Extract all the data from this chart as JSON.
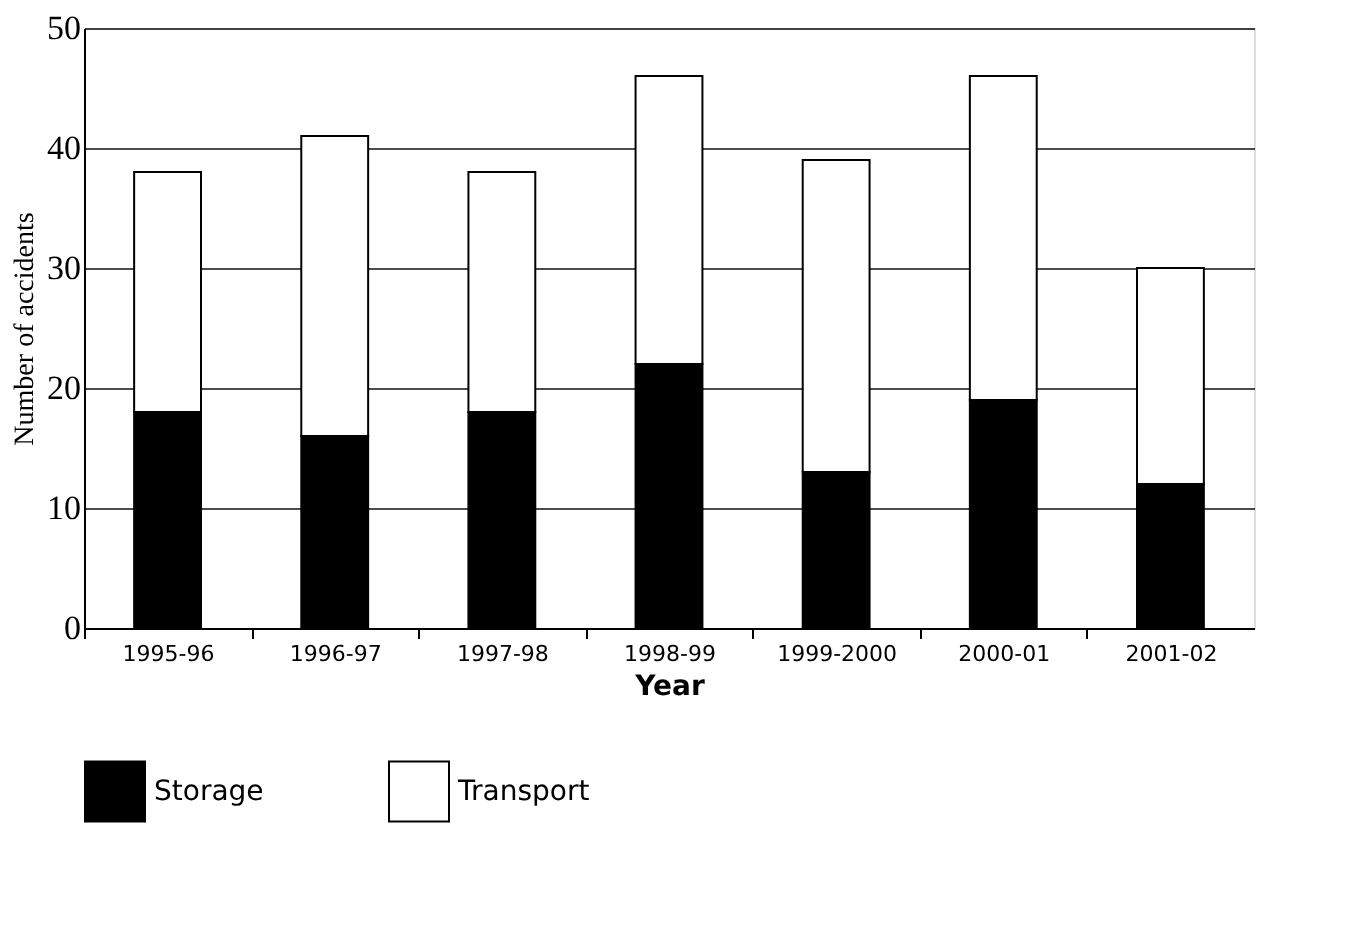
{
  "chart_data": {
    "type": "bar",
    "stacked": true,
    "xlabel": "Year",
    "ylabel": "Number of accidents",
    "categories": [
      "1995-96",
      "1996-97",
      "1997-98",
      "1998-99",
      "1999-2000",
      "2000-01",
      "2001-02"
    ],
    "series": [
      {
        "name": "Storage",
        "color": "#000000",
        "values": [
          18,
          16,
          18,
          22,
          13,
          19,
          12
        ]
      },
      {
        "name": "Transport",
        "color": "#ffffff",
        "values": [
          20,
          25,
          20,
          24,
          26,
          27,
          18
        ]
      }
    ],
    "ylim": [
      0,
      50
    ],
    "yticks": [
      0,
      10,
      20,
      30,
      40,
      50
    ],
    "grid": "y",
    "legend": "bottom"
  }
}
